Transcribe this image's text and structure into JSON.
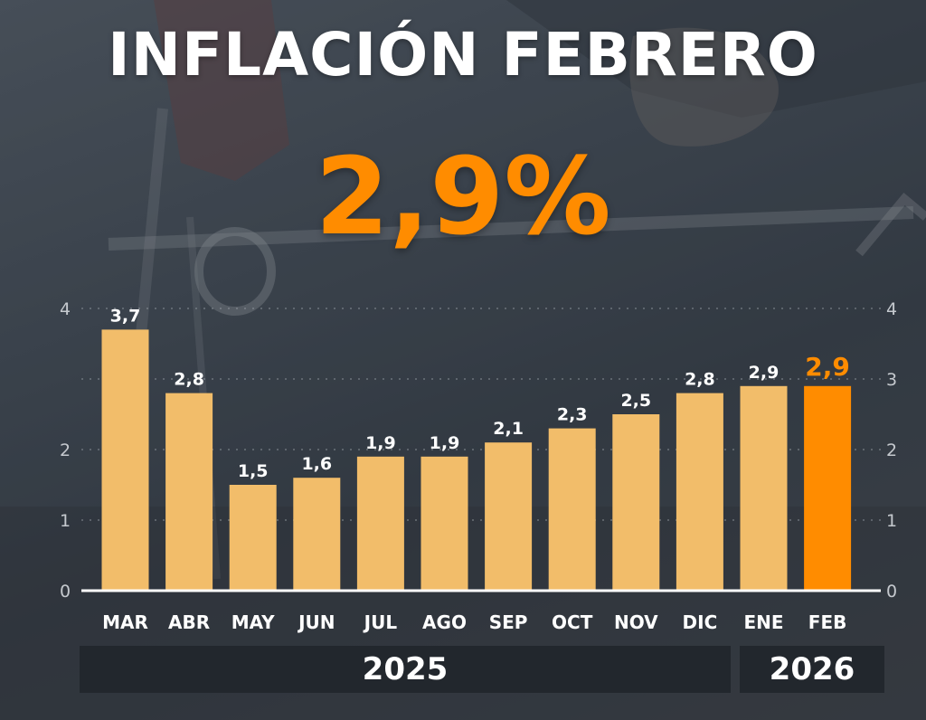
{
  "title": "INFLACIÓN FEBRERO",
  "headline_value": "2,9%",
  "colors": {
    "bar": "#f2bd6a",
    "highlight_bar": "#ff8c00",
    "headline": "#ff8c00",
    "title": "#ffffff",
    "year_band": "#22272d"
  },
  "chart_data": {
    "type": "bar",
    "categories": [
      "MAR",
      "ABR",
      "MAY",
      "JUN",
      "JUL",
      "AGO",
      "SEP",
      "OCT",
      "NOV",
      "DIC",
      "ENE",
      "FEB"
    ],
    "values": [
      3.7,
      2.8,
      1.5,
      1.6,
      1.9,
      1.9,
      2.1,
      2.3,
      2.5,
      2.8,
      2.9,
      2.9
    ],
    "value_labels": [
      "3,7",
      "2,8",
      "1,5",
      "1,6",
      "1,9",
      "1,9",
      "2,1",
      "2,3",
      "2,5",
      "2,8",
      "2,9",
      "2,9"
    ],
    "highlight_index": 11,
    "ylim": [
      0,
      4
    ],
    "y_ticks_left": [
      "0",
      "1",
      "2",
      "4"
    ],
    "y_ticks_right": [
      "0",
      "1",
      "2",
      "3",
      "4"
    ],
    "grid": true,
    "year_groups": [
      {
        "label": "2025",
        "from": 0,
        "to": 9
      },
      {
        "label": "2026",
        "from": 10,
        "to": 11
      }
    ]
  }
}
